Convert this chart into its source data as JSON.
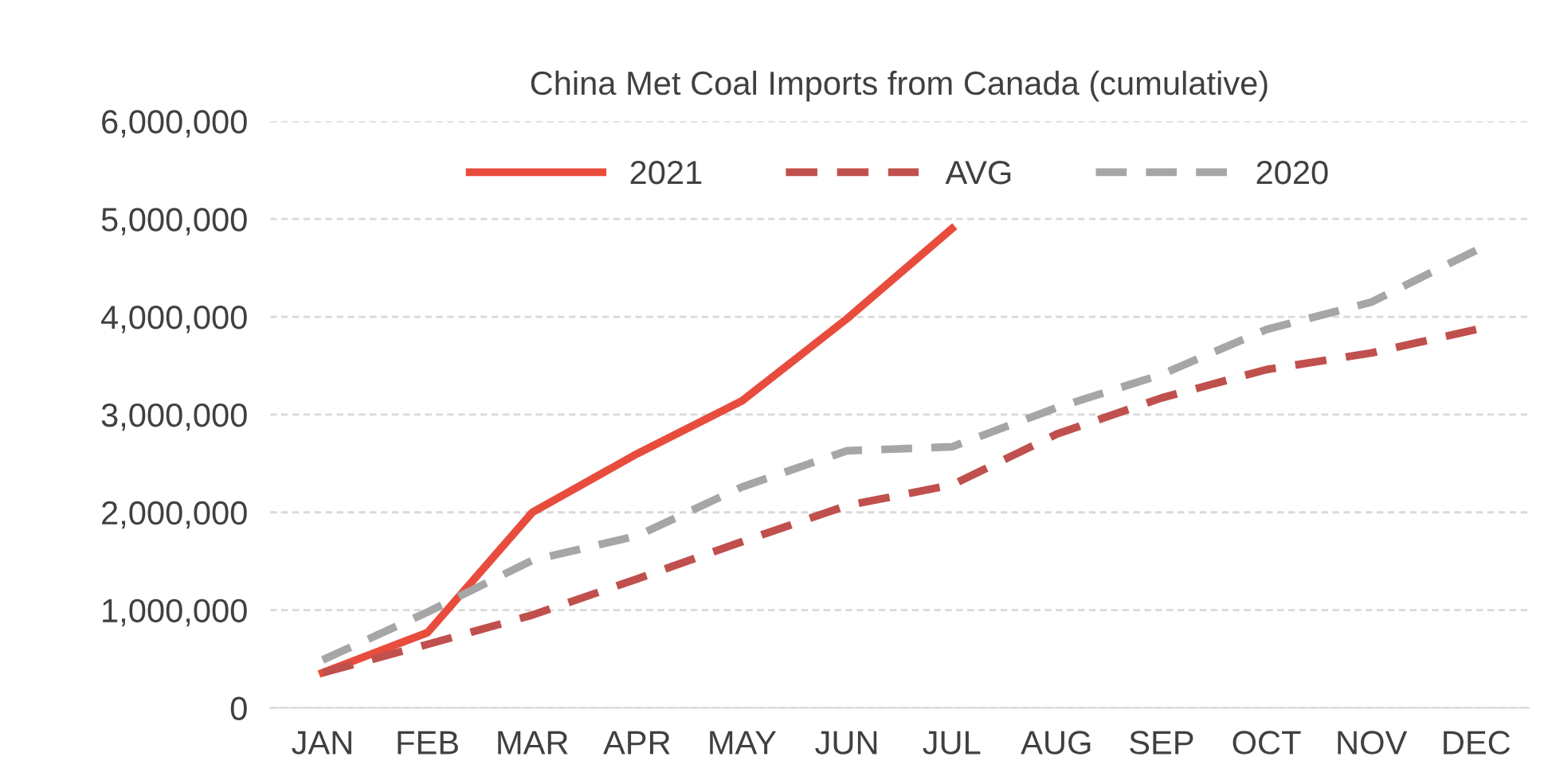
{
  "chart_data": {
    "type": "line",
    "title": "China Met Coal Imports from Canada (cumulative)",
    "categories": [
      "JAN",
      "FEB",
      "MAR",
      "APR",
      "MAY",
      "JUN",
      "JUL",
      "AUG",
      "SEP",
      "OCT",
      "NOV",
      "DEC"
    ],
    "series": [
      {
        "name": "2021",
        "color": "#e84c3d",
        "line_style": "solid",
        "values": [
          360000,
          770000,
          2000000,
          2600000,
          3140000,
          3980000,
          4900000,
          null,
          null,
          null,
          null,
          null
        ]
      },
      {
        "name": "AVG",
        "color": "#c0504d",
        "line_style": "dashed",
        "values": [
          360000,
          650000,
          950000,
          1320000,
          1700000,
          2070000,
          2280000,
          2800000,
          3170000,
          3460000,
          3630000,
          3870000
        ]
      },
      {
        "name": "2020",
        "color": "#a6a6a6",
        "line_style": "dashed",
        "values": [
          490000,
          980000,
          1510000,
          1760000,
          2260000,
          2630000,
          2670000,
          3070000,
          3410000,
          3870000,
          4150000,
          4680000
        ]
      }
    ],
    "ylim": [
      0,
      6000000
    ],
    "yticks": [
      {
        "value": 0,
        "label": "0"
      },
      {
        "value": 1000000,
        "label": "1,000,000"
      },
      {
        "value": 2000000,
        "label": "2,000,000"
      },
      {
        "value": 3000000,
        "label": "3,000,000"
      },
      {
        "value": 4000000,
        "label": "4,000,000"
      },
      {
        "value": 5000000,
        "label": "5,000,000"
      },
      {
        "value": 6000000,
        "label": "6,000,000"
      }
    ],
    "grid": "y",
    "legend": "top",
    "marker": "none"
  }
}
